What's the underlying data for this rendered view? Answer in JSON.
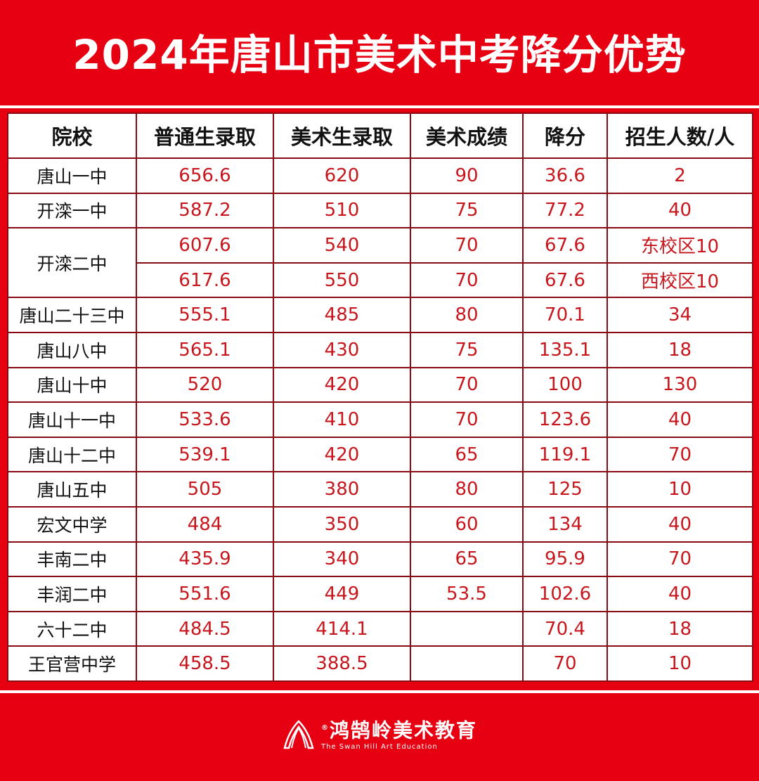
{
  "title": "2024年唐山市美术中考降分优势",
  "table": {
    "headers": [
      "院校",
      "普通生录取",
      "美术生录取",
      "美术成绩",
      "降分",
      "招生人数/人"
    ],
    "rows": [
      {
        "school": "唐山一中",
        "cells": [
          "656.6",
          "620",
          "90",
          "36.6",
          "2"
        ]
      },
      {
        "school": "开滦一中",
        "cells": [
          "587.2",
          "510",
          "75",
          "77.2",
          "40"
        ]
      },
      {
        "school": "开滦二中",
        "cells": [
          "607.6",
          "540",
          "70",
          "67.6",
          "东校区10"
        ]
      },
      {
        "school": "",
        "cells": [
          "617.6",
          "550",
          "70",
          "67.6",
          "西校区10"
        ]
      },
      {
        "school": "唐山二十三中",
        "cells": [
          "555.1",
          "485",
          "80",
          "70.1",
          "34"
        ]
      },
      {
        "school": "唐山八中",
        "cells": [
          "565.1",
          "430",
          "75",
          "135.1",
          "18"
        ]
      },
      {
        "school": "唐山十中",
        "cells": [
          "520",
          "420",
          "70",
          "100",
          "130"
        ]
      },
      {
        "school": "唐山十一中",
        "cells": [
          "533.6",
          "410",
          "70",
          "123.6",
          "40"
        ]
      },
      {
        "school": "唐山十二中",
        "cells": [
          "539.1",
          "420",
          "65",
          "119.1",
          "70"
        ]
      },
      {
        "school": "唐山五中",
        "cells": [
          "505",
          "380",
          "80",
          "125",
          "10"
        ]
      },
      {
        "school": "宏文中学",
        "cells": [
          "484",
          "350",
          "60",
          "134",
          "40"
        ]
      },
      {
        "school": "丰南二中",
        "cells": [
          "435.9",
          "340",
          "65",
          "95.9",
          "70"
        ]
      },
      {
        "school": "丰润二中",
        "cells": [
          "551.6",
          "449",
          "53.5",
          "102.6",
          "40"
        ]
      },
      {
        "school": "六十二中",
        "cells": [
          "484.5",
          "414.1",
          "",
          "70.4",
          "18"
        ]
      },
      {
        "school": "王官营中学",
        "cells": [
          "458.5",
          "388.5",
          "",
          "70",
          "10"
        ]
      }
    ]
  },
  "logo": {
    "mark": "®",
    "name_cn": "鸿鹄岭美术教育",
    "name_en": "The Swan Hill Art Education"
  },
  "colors": {
    "background": "#e60012",
    "value_text": "#c8161d",
    "border": "#8a0a14"
  }
}
